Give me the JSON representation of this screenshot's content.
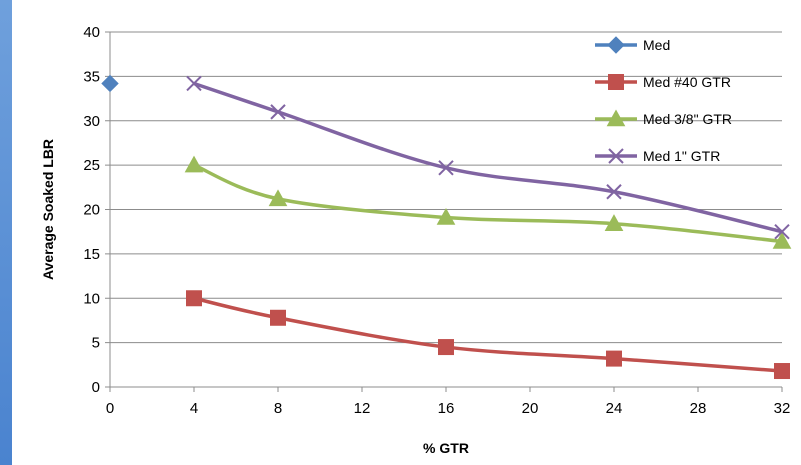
{
  "chart_data": {
    "type": "line",
    "title": "",
    "xlabel": "% GTR",
    "ylabel": "Average Soaked LBR",
    "x_ticks": [
      "0",
      "4",
      "8",
      "12",
      "16",
      "20",
      "24",
      "28",
      "32"
    ],
    "y_ticks": [
      "0",
      "5",
      "10",
      "15",
      "20",
      "25",
      "30",
      "35",
      "40"
    ],
    "xlim": [
      0,
      32
    ],
    "ylim": [
      0,
      40
    ],
    "grid": "horizontal",
    "legend_position": "top-right",
    "series": [
      {
        "name": "Med",
        "marker": "diamond",
        "color": "#4f81bd",
        "points": [
          [
            0,
            34.2
          ]
        ]
      },
      {
        "name": "Med #40 GTR",
        "marker": "square",
        "color": "#c0504d",
        "points": [
          [
            4,
            10.0
          ],
          [
            8,
            7.8
          ],
          [
            16,
            4.5
          ],
          [
            24,
            3.2
          ],
          [
            32,
            1.8
          ]
        ]
      },
      {
        "name": "Med 3/8\" GTR",
        "marker": "triangle",
        "color": "#9bbb59",
        "points": [
          [
            4,
            25.0
          ],
          [
            8,
            21.2
          ],
          [
            16,
            19.1
          ],
          [
            24,
            18.4
          ],
          [
            32,
            16.4
          ]
        ]
      },
      {
        "name": "Med 1\" GTR",
        "marker": "x",
        "color": "#8064a2",
        "points": [
          [
            4,
            34.2
          ],
          [
            8,
            31.0
          ],
          [
            16,
            24.7
          ],
          [
            24,
            22.0
          ],
          [
            32,
            17.5
          ]
        ]
      }
    ]
  }
}
